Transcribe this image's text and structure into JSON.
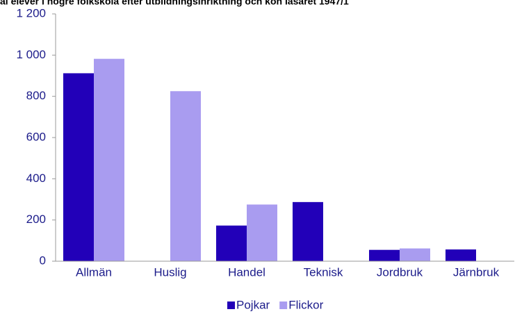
{
  "chart_data": {
    "type": "bar",
    "title": "al elever i högre folkskola efter utbildningsinriktning och kön läsåret 1947/1",
    "categories": [
      "Allmän",
      "Huslig",
      "Handel",
      "Teknisk",
      "Jordbruk",
      "Järnbruk"
    ],
    "series": [
      {
        "name": "Pojkar",
        "color": "#2200b8",
        "values": [
          912,
          0,
          173,
          287,
          55,
          57
        ]
      },
      {
        "name": "Flickor",
        "color": "#a99cf0",
        "values": [
          982,
          825,
          275,
          0,
          62,
          0
        ]
      }
    ],
    "ylim": [
      0,
      1200
    ],
    "yticks": [
      0,
      200,
      400,
      600,
      800,
      {
        "value": 1000,
        "label": "1 000"
      },
      {
        "value": 1200,
        "label": "1 200"
      }
    ],
    "legend": "bottom"
  }
}
